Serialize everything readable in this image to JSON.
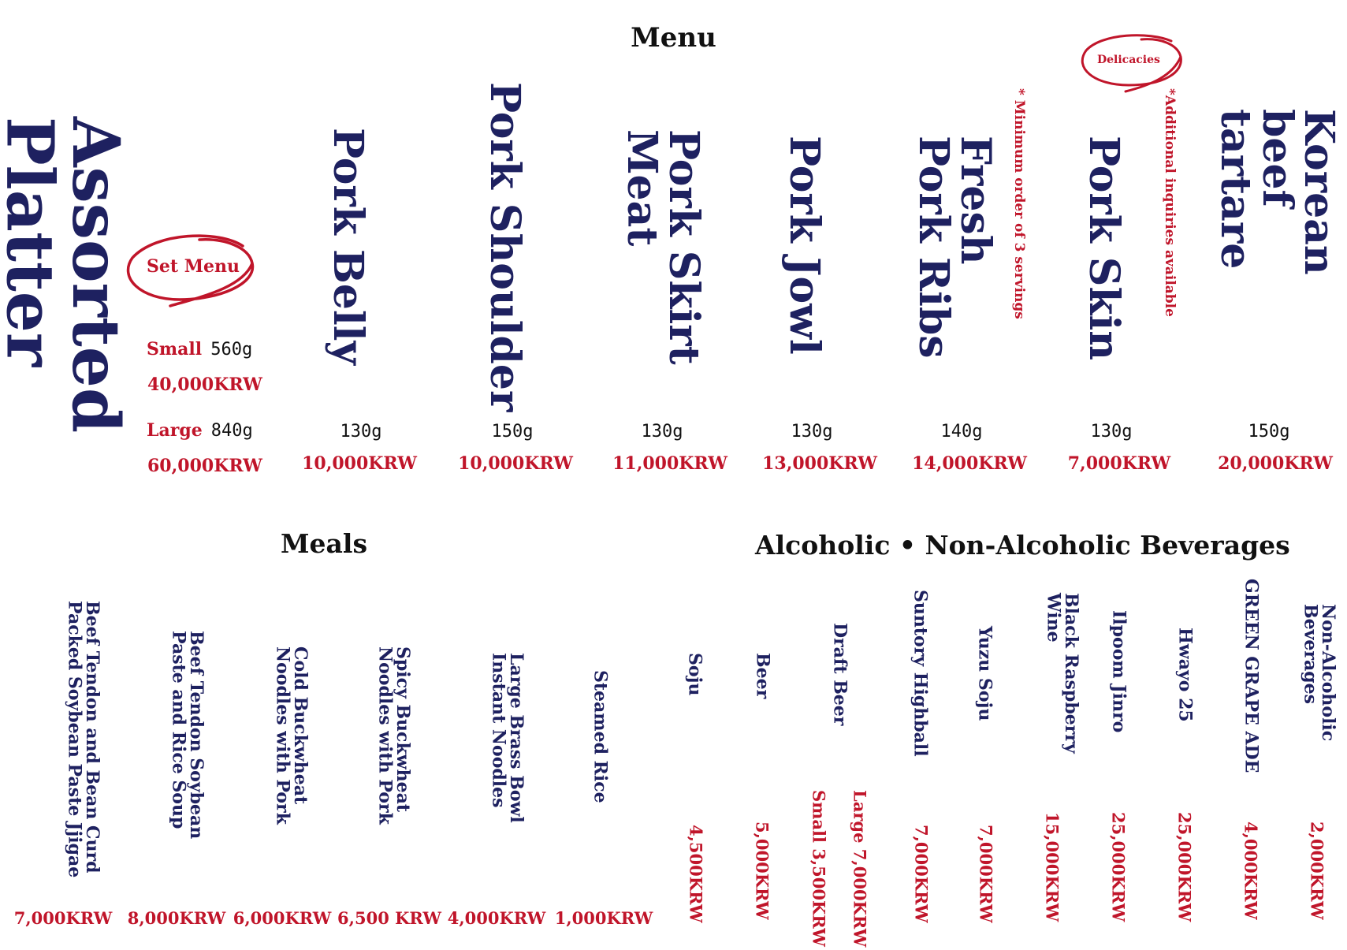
{
  "header": {
    "title": "Menu"
  },
  "set_menu": {
    "name": "Assorted Platter",
    "badge": "Set Menu",
    "small_label": "Small",
    "small_weight": "560g",
    "small_price": "40,000KRW",
    "large_label": "Large",
    "large_weight": "840g",
    "large_price": "60,000KRW"
  },
  "cuts": [
    {
      "name": "Pork Belly",
      "weight": "130g",
      "price": "10,000KRW"
    },
    {
      "name": "Pork Shoulder",
      "weight": "150g",
      "price": "10,000KRW"
    },
    {
      "name": "Pork Skirt Meat",
      "weight": "130g",
      "price": "11,000KRW"
    },
    {
      "name": "Pork Jowl",
      "weight": "130g",
      "price": "13,000KRW"
    },
    {
      "name": "Fresh Pork Ribs",
      "weight": "140g",
      "price": "14,000KRW"
    },
    {
      "name": "Pork Skin",
      "weight": "130g",
      "price": "7,000KRW"
    },
    {
      "name": "Korean beef tartare",
      "weight": "150g",
      "price": "20,000KRW"
    }
  ],
  "notes": {
    "minimum_order": "* Minimum order of 3 servings",
    "delicacies_badge": "Delicacies",
    "additional_inquiries": "*Additional inquiries available"
  },
  "meals": {
    "title": "Meals",
    "items": [
      {
        "name": "Beef Tendon and Bean Curd Packed Soybean Paste Jjigae",
        "price": "7,000KRW"
      },
      {
        "name": "Beef Tendon Soybean Paste and Rice Soup",
        "price": "8,000KRW"
      },
      {
        "name": "Cold Buckwheat Noodles with Pork",
        "price": "6,000KRW"
      },
      {
        "name": "Spicy Buckwheat Noodles with Pork",
        "price": "6,500 KRW"
      },
      {
        "name": "Large Brass Bowl Instant Noodles",
        "price": "4,000KRW"
      },
      {
        "name": "Steamed Rice",
        "price": "1,000KRW"
      }
    ]
  },
  "beverages": {
    "title": "Alcoholic • Non-Alcoholic Beverages",
    "items": [
      {
        "name": "Soju",
        "price": "4,500KRW"
      },
      {
        "name": "Beer",
        "price": "5,000KRW"
      },
      {
        "name": "Draft Beer",
        "price_large": "Large 7,000KRW",
        "price_small": "Small 3,500KRW"
      },
      {
        "name": "Suntory Highball",
        "price": "7,000KRW"
      },
      {
        "name": "Yuzu Soju",
        "price": "7,000KRW"
      },
      {
        "name": "Black Raspberry Wine",
        "price": "15,000KRW"
      },
      {
        "name": "Ilpoom Jinro",
        "price": "25,000KRW"
      },
      {
        "name": "Hwayo 25",
        "price": "25,000KRW"
      },
      {
        "name": "GREEN GRAPE ADE",
        "price": "4,000KRW"
      },
      {
        "name": "Non-Alcoholic Beverages",
        "price": "2,000KRW"
      }
    ]
  },
  "colors": {
    "navy": "#1e2160",
    "red": "#c0152a",
    "black": "#111111"
  }
}
